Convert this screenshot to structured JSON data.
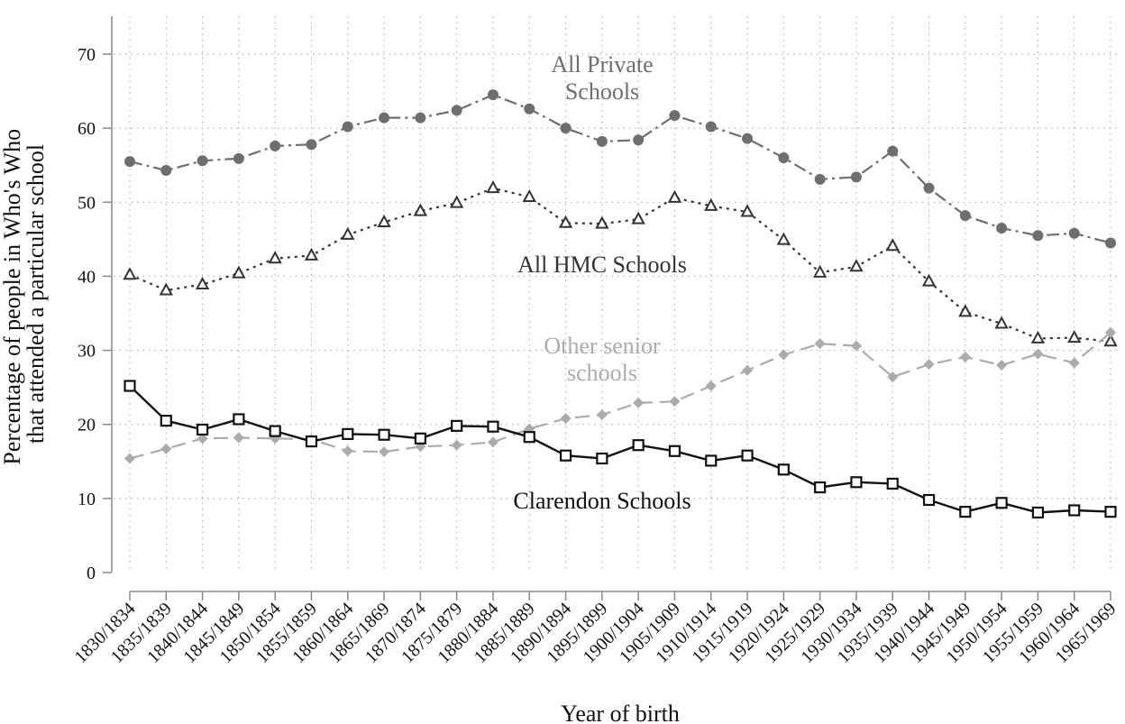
{
  "chart_data": {
    "type": "line",
    "title": "",
    "xlabel": "Year of birth",
    "ylabel_line1": "Percentage of people in Who's Who",
    "ylabel_line2": "that attended a particular school",
    "ylim": [
      0,
      75
    ],
    "yticks": [
      0,
      10,
      20,
      30,
      40,
      50,
      60,
      70
    ],
    "grid": true,
    "legend": "inline labels",
    "categories": [
      "1830/1834",
      "1835/1839",
      "1840/1844",
      "1845/1849",
      "1850/1854",
      "1855/1859",
      "1860/1864",
      "1865/1869",
      "1870/1874",
      "1875/1879",
      "1880/1884",
      "1885/1889",
      "1890/1894",
      "1895/1899",
      "1900/1904",
      "1905/1909",
      "1910/1914",
      "1915/1919",
      "1920/1924",
      "1925/1929",
      "1930/1934",
      "1935/1939",
      "1940/1944",
      "1945/1949",
      "1950/1954",
      "1955/1959",
      "1960/1964",
      "1965/1969"
    ],
    "series": [
      {
        "name": "All Private Schools",
        "label_lines": [
          "All Private",
          "Schools"
        ],
        "color": "#6e6e6e",
        "marker": "circle",
        "dash": "dash-dot",
        "values": [
          55.5,
          54.3,
          55.6,
          55.9,
          57.6,
          57.8,
          60.2,
          61.4,
          61.4,
          62.4,
          64.5,
          62.6,
          60.0,
          58.2,
          58.4,
          61.7,
          60.2,
          58.6,
          56.0,
          53.1,
          53.4,
          56.9,
          51.9,
          48.2,
          46.5,
          45.5,
          45.8,
          44.5
        ]
      },
      {
        "name": "All HMC Schools",
        "label_lines": [
          "All HMC Schools"
        ],
        "color": "#333333",
        "marker": "triangle",
        "dash": "dotted",
        "values": [
          40.2,
          38.1,
          38.9,
          40.4,
          42.4,
          42.8,
          45.6,
          47.3,
          48.8,
          49.9,
          51.9,
          50.7,
          47.2,
          47.1,
          47.7,
          50.6,
          49.5,
          48.7,
          44.9,
          40.5,
          41.3,
          44.1,
          39.3,
          35.2,
          33.6,
          31.6,
          31.7,
          31.2
        ]
      },
      {
        "name": "Other senior schools",
        "label_lines": [
          "Other senior",
          "schools"
        ],
        "color": "#ababab",
        "marker": "diamond",
        "dash": "dashed",
        "values": [
          15.4,
          16.7,
          18.1,
          18.2,
          18.1,
          18.0,
          16.4,
          16.3,
          17.0,
          17.2,
          17.6,
          19.4,
          20.8,
          21.3,
          22.9,
          23.1,
          25.2,
          27.3,
          29.4,
          30.9,
          30.6,
          26.4,
          28.1,
          29.1,
          28.0,
          29.5,
          28.3,
          32.4
        ]
      },
      {
        "name": "Clarendon Schools",
        "label_lines": [
          "Clarendon Schools"
        ],
        "color": "#111111",
        "marker": "square",
        "dash": "solid",
        "values": [
          25.2,
          20.5,
          19.3,
          20.7,
          19.1,
          17.7,
          18.7,
          18.6,
          18.1,
          19.8,
          19.7,
          18.3,
          15.8,
          15.4,
          17.2,
          16.4,
          15.1,
          15.8,
          13.9,
          11.5,
          12.2,
          12.0,
          9.8,
          8.2,
          9.4,
          8.1,
          8.4,
          8.2
        ]
      }
    ]
  }
}
